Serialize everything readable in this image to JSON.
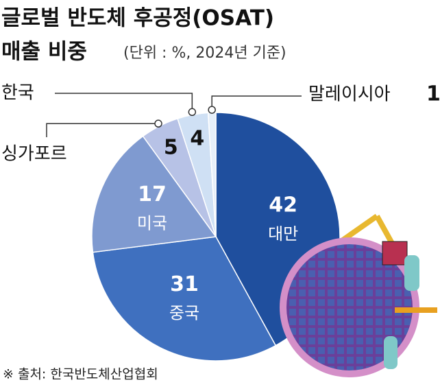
{
  "chart_data": {
    "type": "pie",
    "title": [
      "글로벌 반도체 후공정(OSAT)",
      "매출 비중"
    ],
    "subtitle": "(단위 : %, 2024년 기준)",
    "categories": [
      "대만",
      "중국",
      "미국",
      "싱가포르",
      "한국",
      "말레이시아"
    ],
    "values": [
      42,
      31,
      17,
      5,
      4,
      1
    ],
    "colors": [
      "#1f4f9e",
      "#3f70bf",
      "#7f9ad0",
      "#b7c2e6",
      "#cfe0f4",
      "#e6eff9"
    ],
    "source": "※ 출처: 한국반도체산업협회"
  }
}
